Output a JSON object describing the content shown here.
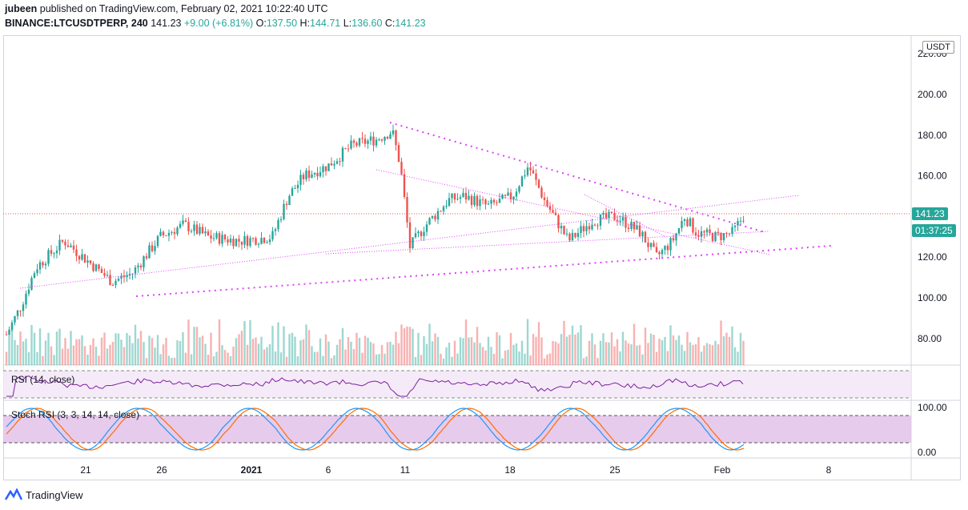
{
  "header": {
    "author": "jubeen",
    "published_text": "published on TradingView.com, February 02, 2021 10:22:40 UTC",
    "symbol": "BINANCE:LTCUSDTPERP, 240",
    "last": "141.23",
    "change": "+9.00 (+6.81%)",
    "o_label": "O:",
    "o_val": "137.50",
    "h_label": "H:",
    "h_val": "144.71",
    "l_label": "L:",
    "l_val": "136.60",
    "c_label": "C:",
    "c_val": "141.23"
  },
  "currency": "USDT",
  "price_badge": "141.23",
  "countdown_badge": "01:37:25",
  "rsi_title": "RSI (14, close)",
  "stoch_title": "Stoch RSI (3, 3, 14, 14, close)",
  "footer_brand": "TradingView",
  "colors": {
    "up": "#26a69a",
    "down": "#ef5350",
    "trend": "#e040fb",
    "rsi": "#7b1fa2",
    "stoch_k": "#2196f3",
    "stoch_d": "#ff6d00",
    "badge": "#26a69a"
  },
  "chart_data": {
    "type": "candlestick",
    "price_axis_ticks": [
      "220.00",
      "200.00",
      "180.00",
      "160.00",
      "140.00",
      "120.00",
      "100.00",
      "80.00"
    ],
    "stoch_axis_ticks": [
      "100.00",
      "0.00"
    ],
    "x_ticks": [
      "21",
      "26",
      "2021",
      "6",
      "11",
      "18",
      "25",
      "Feb",
      "8"
    ],
    "ohlc_approx": [
      {
        "t": "Jan 17",
        "price": 82
      },
      {
        "t": "Jan 20",
        "price": 120
      },
      {
        "t": "Jan 23",
        "price": 110
      },
      {
        "t": "Jan 26",
        "price": 130
      },
      {
        "t": "Jan 30",
        "price": 128
      },
      {
        "t": "Jan 1",
        "price": 125
      },
      {
        "t": "Jan 4",
        "price": 155
      },
      {
        "t": "Jan 7",
        "price": 168
      },
      {
        "t": "Jan 10",
        "price": 185
      },
      {
        "t": "Jan 11",
        "price": 125
      },
      {
        "t": "Jan 14",
        "price": 150
      },
      {
        "t": "Jan 18",
        "price": 148
      },
      {
        "t": "Jan 19",
        "price": 165
      },
      {
        "t": "Jan 22",
        "price": 128
      },
      {
        "t": "Jan 25",
        "price": 142
      },
      {
        "t": "Jan 27",
        "price": 120
      },
      {
        "t": "Jan 29",
        "price": 140
      },
      {
        "t": "Feb 1",
        "price": 132
      },
      {
        "t": "Feb 2",
        "price": 141.23
      }
    ],
    "last": 141.23,
    "open": 137.5,
    "high": 144.71,
    "low": 136.6,
    "close": 141.23,
    "ylim": [
      65,
      225
    ],
    "stoch_ylim": [
      0,
      100
    ]
  }
}
